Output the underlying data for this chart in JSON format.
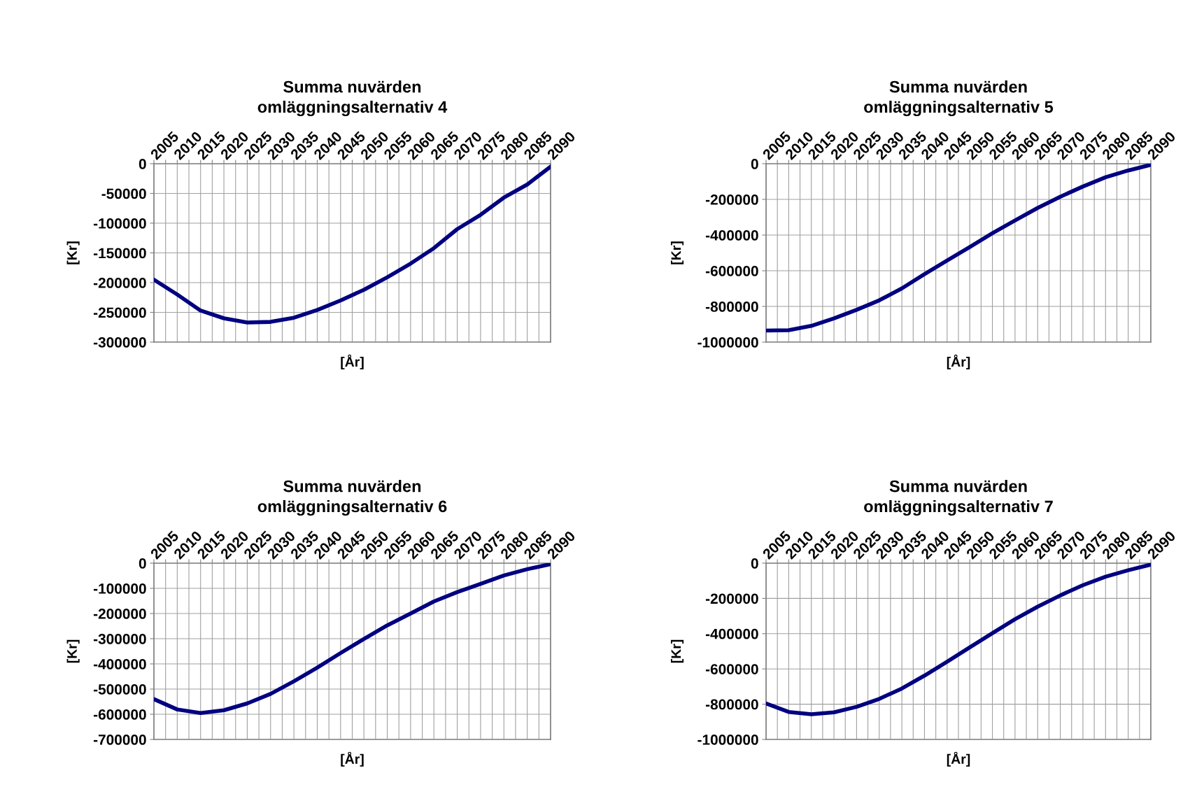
{
  "chart_data": [
    {
      "type": "line",
      "title": "Summa nuvärden\nomläggningsalternativ 4",
      "xlabel": "[År]",
      "ylabel": "[Kr]",
      "grid": true,
      "line_style": "solid",
      "marker": "none",
      "x": [
        2005,
        2010,
        2015,
        2020,
        2025,
        2030,
        2035,
        2040,
        2045,
        2050,
        2055,
        2060,
        2065,
        2070,
        2075,
        2080,
        2085,
        2090
      ],
      "series": [
        {
          "color": "#000080",
          "values": [
            -195000,
            -220000,
            -247000,
            -260000,
            -267000,
            -266000,
            -259000,
            -246000,
            -230000,
            -212000,
            -191000,
            -168000,
            -142000,
            -110000,
            -86000,
            -57000,
            -35000,
            -5000
          ]
        }
      ],
      "xlim": [
        2005,
        2090
      ],
      "ylim": [
        -300000,
        0
      ],
      "yticks": [
        -300000,
        -250000,
        -200000,
        -150000,
        -100000,
        -50000,
        0
      ],
      "xticks": [
        2005,
        {
          "value": 2007.5,
          "label": null
        },
        2010,
        {
          "value": 2012.5,
          "label": null
        },
        2015,
        {
          "value": 2017.5,
          "label": null
        },
        2020,
        {
          "value": 2022.5,
          "label": null
        },
        2025,
        {
          "value": 2027.5,
          "label": null
        },
        2030,
        {
          "value": 2032.5,
          "label": null
        },
        2035,
        {
          "value": 2037.5,
          "label": null
        },
        2040,
        {
          "value": 2042.5,
          "label": null
        },
        2045,
        {
          "value": 2047.5,
          "label": null
        },
        2050,
        {
          "value": 2052.5,
          "label": null
        },
        2055,
        {
          "value": 2057.5,
          "label": null
        },
        2060,
        {
          "value": 2062.5,
          "label": null
        },
        2065,
        {
          "value": 2067.5,
          "label": null
        },
        2070,
        {
          "value": 2072.5,
          "label": null
        },
        2075,
        {
          "value": 2077.5,
          "label": null
        },
        2080,
        {
          "value": 2082.5,
          "label": null
        },
        2085,
        {
          "value": 2087.5,
          "label": null
        },
        2090
      ]
    },
    {
      "type": "line",
      "title": "Summa nuvärden\nomläggningsalternativ 5",
      "xlabel": "[År]",
      "ylabel": "[Kr]",
      "grid": true,
      "line_style": "solid",
      "marker": "none",
      "x": [
        2005,
        2010,
        2015,
        2020,
        2025,
        2030,
        2035,
        2040,
        2045,
        2050,
        2055,
        2060,
        2065,
        2070,
        2075,
        2080,
        2085,
        2090
      ],
      "series": [
        {
          "color": "#000080",
          "values": [
            -935000,
            -933000,
            -909000,
            -867000,
            -819000,
            -766000,
            -699000,
            -619000,
            -543000,
            -467000,
            -390000,
            -318000,
            -248000,
            -185000,
            -128000,
            -76000,
            -38000,
            -6000
          ]
        }
      ],
      "xlim": [
        2005,
        2090
      ],
      "ylim": [
        -1000000,
        0
      ],
      "yticks": [
        -1000000,
        -800000,
        -600000,
        -400000,
        -200000,
        0
      ],
      "xticks": [
        2005,
        {
          "value": 2007.5,
          "label": null
        },
        2010,
        {
          "value": 2012.5,
          "label": null
        },
        2015,
        {
          "value": 2017.5,
          "label": null
        },
        2020,
        {
          "value": 2022.5,
          "label": null
        },
        2025,
        {
          "value": 2027.5,
          "label": null
        },
        2030,
        {
          "value": 2032.5,
          "label": null
        },
        2035,
        {
          "value": 2037.5,
          "label": null
        },
        2040,
        {
          "value": 2042.5,
          "label": null
        },
        2045,
        {
          "value": 2047.5,
          "label": null
        },
        2050,
        {
          "value": 2052.5,
          "label": null
        },
        2055,
        {
          "value": 2057.5,
          "label": null
        },
        2060,
        {
          "value": 2062.5,
          "label": null
        },
        2065,
        {
          "value": 2067.5,
          "label": null
        },
        2070,
        {
          "value": 2072.5,
          "label": null
        },
        2075,
        {
          "value": 2077.5,
          "label": null
        },
        2080,
        {
          "value": 2082.5,
          "label": null
        },
        2085,
        {
          "value": 2087.5,
          "label": null
        },
        2090
      ]
    },
    {
      "type": "line",
      "title": "Summa nuvärden\nomläggningsalternativ 6",
      "xlabel": "[År]",
      "ylabel": "[Kr]",
      "grid": true,
      "line_style": "solid",
      "marker": "none",
      "x": [
        2005,
        2010,
        2015,
        2020,
        2025,
        2030,
        2035,
        2040,
        2045,
        2050,
        2055,
        2060,
        2065,
        2070,
        2075,
        2080,
        2085,
        2090
      ],
      "series": [
        {
          "color": "#000080",
          "values": [
            -540000,
            -581000,
            -595000,
            -584000,
            -557000,
            -519000,
            -469000,
            -415000,
            -357000,
            -301000,
            -247000,
            -200000,
            -152000,
            -115000,
            -82000,
            -49000,
            -24000,
            -4000
          ]
        }
      ],
      "xlim": [
        2005,
        2090
      ],
      "ylim": [
        -700000,
        0
      ],
      "yticks": [
        -700000,
        -600000,
        -500000,
        -400000,
        -300000,
        -200000,
        -100000,
        0
      ],
      "xticks": [
        2005,
        {
          "value": 2007.5,
          "label": null
        },
        2010,
        {
          "value": 2012.5,
          "label": null
        },
        2015,
        {
          "value": 2017.5,
          "label": null
        },
        2020,
        {
          "value": 2022.5,
          "label": null
        },
        2025,
        {
          "value": 2027.5,
          "label": null
        },
        2030,
        {
          "value": 2032.5,
          "label": null
        },
        2035,
        {
          "value": 2037.5,
          "label": null
        },
        2040,
        {
          "value": 2042.5,
          "label": null
        },
        2045,
        {
          "value": 2047.5,
          "label": null
        },
        2050,
        {
          "value": 2052.5,
          "label": null
        },
        2055,
        {
          "value": 2057.5,
          "label": null
        },
        2060,
        {
          "value": 2062.5,
          "label": null
        },
        2065,
        {
          "value": 2067.5,
          "label": null
        },
        2070,
        {
          "value": 2072.5,
          "label": null
        },
        2075,
        {
          "value": 2077.5,
          "label": null
        },
        2080,
        {
          "value": 2082.5,
          "label": null
        },
        2085,
        {
          "value": 2087.5,
          "label": null
        },
        2090
      ]
    },
    {
      "type": "line",
      "title": "Summa nuvärden\nomläggningsalternativ 7",
      "xlabel": "[År]",
      "ylabel": "[Kr]",
      "grid": true,
      "line_style": "solid",
      "marker": "none",
      "x": [
        2005,
        2010,
        2015,
        2020,
        2025,
        2030,
        2035,
        2040,
        2045,
        2050,
        2055,
        2060,
        2065,
        2070,
        2075,
        2080,
        2085,
        2090
      ],
      "series": [
        {
          "color": "#000080",
          "values": [
            -796000,
            -844000,
            -857000,
            -846000,
            -815000,
            -770000,
            -711000,
            -638000,
            -559000,
            -478000,
            -397000,
            -318000,
            -247000,
            -183000,
            -125000,
            -77000,
            -40000,
            -8000
          ]
        }
      ],
      "xlim": [
        2005,
        2090
      ],
      "ylim": [
        -1000000,
        0
      ],
      "yticks": [
        -1000000,
        -800000,
        -600000,
        -400000,
        -200000,
        0
      ],
      "xticks": [
        2005,
        {
          "value": 2007.5,
          "label": null
        },
        2010,
        {
          "value": 2012.5,
          "label": null
        },
        2015,
        {
          "value": 2017.5,
          "label": null
        },
        2020,
        {
          "value": 2022.5,
          "label": null
        },
        2025,
        {
          "value": 2027.5,
          "label": null
        },
        2030,
        {
          "value": 2032.5,
          "label": null
        },
        2035,
        {
          "value": 2037.5,
          "label": null
        },
        2040,
        {
          "value": 2042.5,
          "label": null
        },
        2045,
        {
          "value": 2047.5,
          "label": null
        },
        2050,
        {
          "value": 2052.5,
          "label": null
        },
        2055,
        {
          "value": 2057.5,
          "label": null
        },
        2060,
        {
          "value": 2062.5,
          "label": null
        },
        2065,
        {
          "value": 2067.5,
          "label": null
        },
        2070,
        {
          "value": 2072.5,
          "label": null
        },
        2075,
        {
          "value": 2077.5,
          "label": null
        },
        2080,
        {
          "value": 2082.5,
          "label": null
        },
        2085,
        {
          "value": 2087.5,
          "label": null
        },
        2090
      ]
    }
  ]
}
